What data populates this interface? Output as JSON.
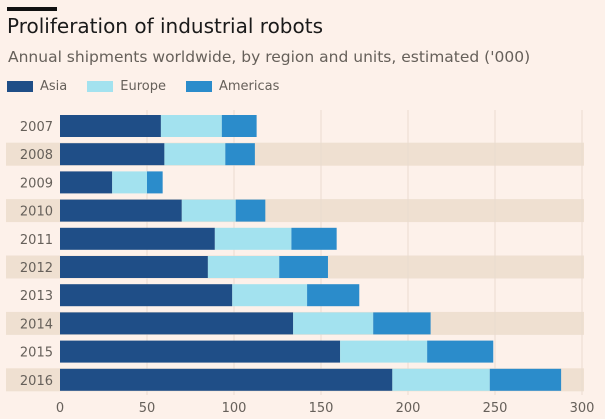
{
  "chart_data": {
    "type": "bar",
    "orientation": "horizontal",
    "stacked": true,
    "title": "Proliferation of industrial robots",
    "subtitle": "Annual shipments worldwide, by region and units, estimated ('000)",
    "categories": [
      "2007",
      "2008",
      "2009",
      "2010",
      "2011",
      "2012",
      "2013",
      "2014",
      "2015",
      "2016"
    ],
    "series": [
      {
        "name": "Asia",
        "color": "#1f4e87",
        "values": [
          58,
          60,
          30,
          70,
          89,
          85,
          99,
          134,
          161,
          191
        ]
      },
      {
        "name": "Europe",
        "color": "#a3e2ef",
        "values": [
          35,
          35,
          20,
          31,
          44,
          41,
          43,
          46,
          50,
          56
        ]
      },
      {
        "name": "Americas",
        "color": "#2b8ccb",
        "values": [
          20,
          17,
          9,
          17,
          26,
          28,
          30,
          33,
          38,
          41
        ]
      }
    ],
    "xlim": [
      0,
      300
    ],
    "xticks": [
      "0",
      "50",
      "100",
      "150",
      "200",
      "250",
      "300"
    ],
    "grid": true,
    "legend": "top-left"
  }
}
